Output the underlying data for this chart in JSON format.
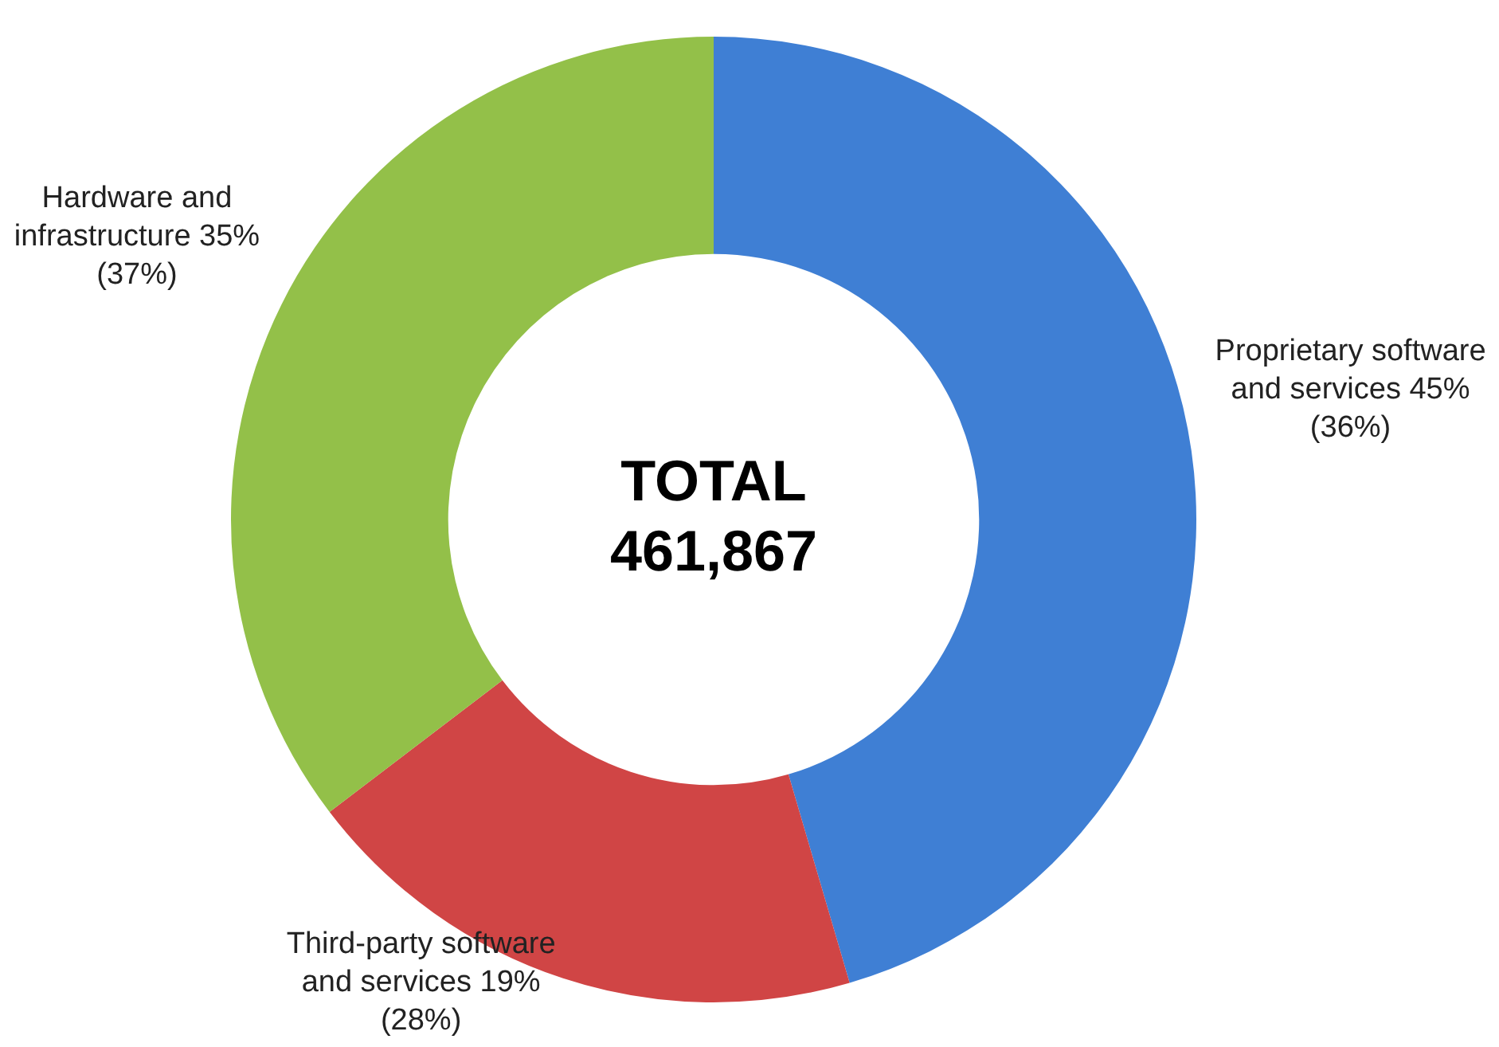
{
  "chart_data": {
    "type": "donut",
    "categories": [
      "Proprietary software and services",
      "Third-party software and services",
      "Hardware and infrastructure"
    ],
    "values": [
      45,
      19,
      35
    ],
    "value_labels": [
      "45% (36%)",
      "19% (28%)",
      "35% (37%)"
    ],
    "colors": [
      "#3f7fd4",
      "#d04545",
      "#93c049"
    ],
    "annotations": [
      "TOTAL 461,867"
    ],
    "legend": false
  }
}
